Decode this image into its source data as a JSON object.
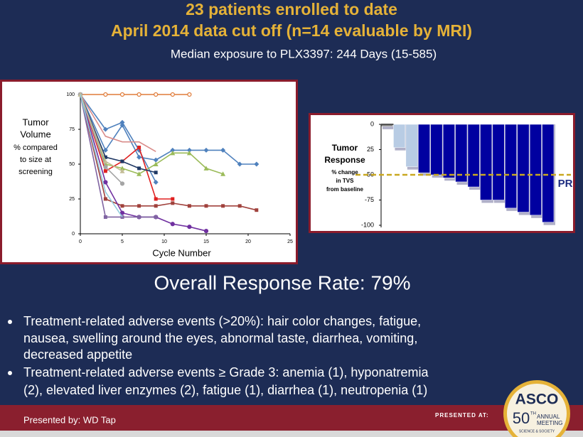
{
  "slide": {
    "title": [
      "23 patients enrolled to date",
      "April 2014 data cut off (n=14 evaluable by MRI)"
    ],
    "subtitle": "Median exposure to PLX3397:  244 Days (15-585)",
    "response_rate": "Overall Response Rate:  79%",
    "bullets": [
      [
        "Treatment-related adverse events (>20%):  hair color changes, fatigue,",
        "nausea, swelling around the eyes, abnormal taste, diarrhea, vomiting,",
        "decreased appetite"
      ],
      [
        "Treatment-related adverse events ≥ Grade 3:  anemia (1), hyponatremia",
        "(2), elevated liver enzymes (2), fatigue (1), diarrhea (1), neutropenia (1)"
      ]
    ],
    "presenter": "Presented by:  WD Tap",
    "presented_at": "PRESENTED AT:",
    "logo": {
      "name": "ASCO",
      "number": "50",
      "suffix": "TH",
      "line1": "ANNUAL",
      "line2": "MEETING",
      "tagline": "SCIENCE & SOCIETY"
    }
  },
  "chart_data": [
    {
      "type": "line",
      "xlabel": "Cycle Number",
      "ylabel": [
        "Tumor",
        "Volume",
        "% compared",
        "to size at",
        "screening"
      ],
      "xlim": [
        0,
        25
      ],
      "xticks": [
        0,
        5,
        10,
        15,
        20,
        25
      ],
      "ylim": [
        0,
        100
      ],
      "yticks": [
        0,
        25,
        50,
        75,
        100
      ],
      "grid": false,
      "series": [
        {
          "color": "#e07b39",
          "marker": "circle-open",
          "x": [
            0,
            3,
            5,
            7,
            9,
            11,
            13
          ],
          "values": [
            100,
            100,
            100,
            100,
            100,
            100,
            100
          ]
        },
        {
          "color": "#4f81bd",
          "marker": "diamond",
          "x": [
            0,
            3,
            5,
            7,
            9,
            11,
            13,
            15,
            17,
            19,
            21
          ],
          "values": [
            100,
            60,
            78,
            55,
            53,
            60,
            60,
            60,
            60,
            50,
            50
          ]
        },
        {
          "color": "#4f81bd",
          "marker": "diamond",
          "x": [
            0,
            3,
            5,
            7,
            9
          ],
          "values": [
            100,
            75,
            80,
            60,
            37
          ]
        },
        {
          "color": "#9bbb59",
          "marker": "triangle",
          "x": [
            0,
            3,
            5,
            7,
            9,
            11,
            13,
            15,
            17
          ],
          "values": [
            100,
            50,
            47,
            43,
            50,
            58,
            58,
            47,
            43
          ]
        },
        {
          "color": "#a0413c",
          "marker": "square",
          "x": [
            0,
            3,
            5,
            7,
            9,
            11,
            13,
            15,
            17,
            19,
            21
          ],
          "values": [
            100,
            25,
            20,
            20,
            20,
            22,
            20,
            20,
            20,
            20,
            17
          ]
        },
        {
          "color": "#e02020",
          "marker": "square",
          "x": [
            0,
            3,
            5,
            7,
            9,
            11
          ],
          "values": [
            100,
            45,
            52,
            62,
            25,
            25
          ]
        },
        {
          "color": "#7030a0",
          "marker": "circle",
          "x": [
            0,
            3,
            5,
            7,
            9,
            11,
            13,
            15
          ],
          "values": [
            100,
            37,
            15,
            12,
            12,
            7,
            5,
            2
          ]
        },
        {
          "color": "#8064a2",
          "marker": "square",
          "x": [
            0,
            3,
            5,
            7,
            9
          ],
          "values": [
            100,
            12,
            12,
            12,
            12
          ]
        },
        {
          "color": "#1f3864",
          "marker": "square",
          "x": [
            0,
            3,
            5,
            7,
            9
          ],
          "values": [
            100,
            55,
            52,
            47,
            44
          ]
        },
        {
          "color": "#d98c8a",
          "marker": "none",
          "x": [
            0,
            3,
            5,
            7,
            9
          ],
          "values": [
            100,
            70,
            66,
            66,
            59
          ]
        },
        {
          "color": "#a5a5a5",
          "marker": "circle",
          "x": [
            0,
            3,
            5
          ],
          "values": [
            100,
            48,
            36
          ]
        },
        {
          "color": "#c4bd97",
          "marker": "triangle",
          "x": [
            0,
            3,
            5
          ],
          "values": [
            100,
            52,
            45
          ]
        },
        {
          "color": "#93cddd",
          "marker": "none",
          "x": [
            0,
            3,
            5
          ],
          "values": [
            100,
            30,
            12
          ]
        }
      ]
    },
    {
      "type": "bar",
      "ylabel": [
        "Tumor",
        "Response",
        "% change",
        "in TVS",
        "from baseline"
      ],
      "ylim": [
        -100,
        0
      ],
      "yticks": [
        0,
        {
          "value": -25,
          "label": "25"
        },
        {
          "value": -50,
          "label": "50"
        },
        -75,
        -100
      ],
      "values": [
        -2,
        -23,
        -42,
        -48,
        -50,
        -53,
        -57,
        -62,
        -75,
        -75,
        -83,
        -87,
        -90,
        -97
      ],
      "colors": [
        "#808080",
        "#b8cce4",
        "#b8cce4",
        "#0000a0",
        "#0000a0",
        "#0000a0",
        "#0000a0",
        "#0000a0",
        "#0000a0",
        "#0000a0",
        "#0000a0",
        "#0000a0",
        "#0000a0",
        "#0000a0"
      ],
      "reference_line": {
        "value": -50,
        "label": "PR",
        "color": "#c9a820"
      }
    }
  ]
}
